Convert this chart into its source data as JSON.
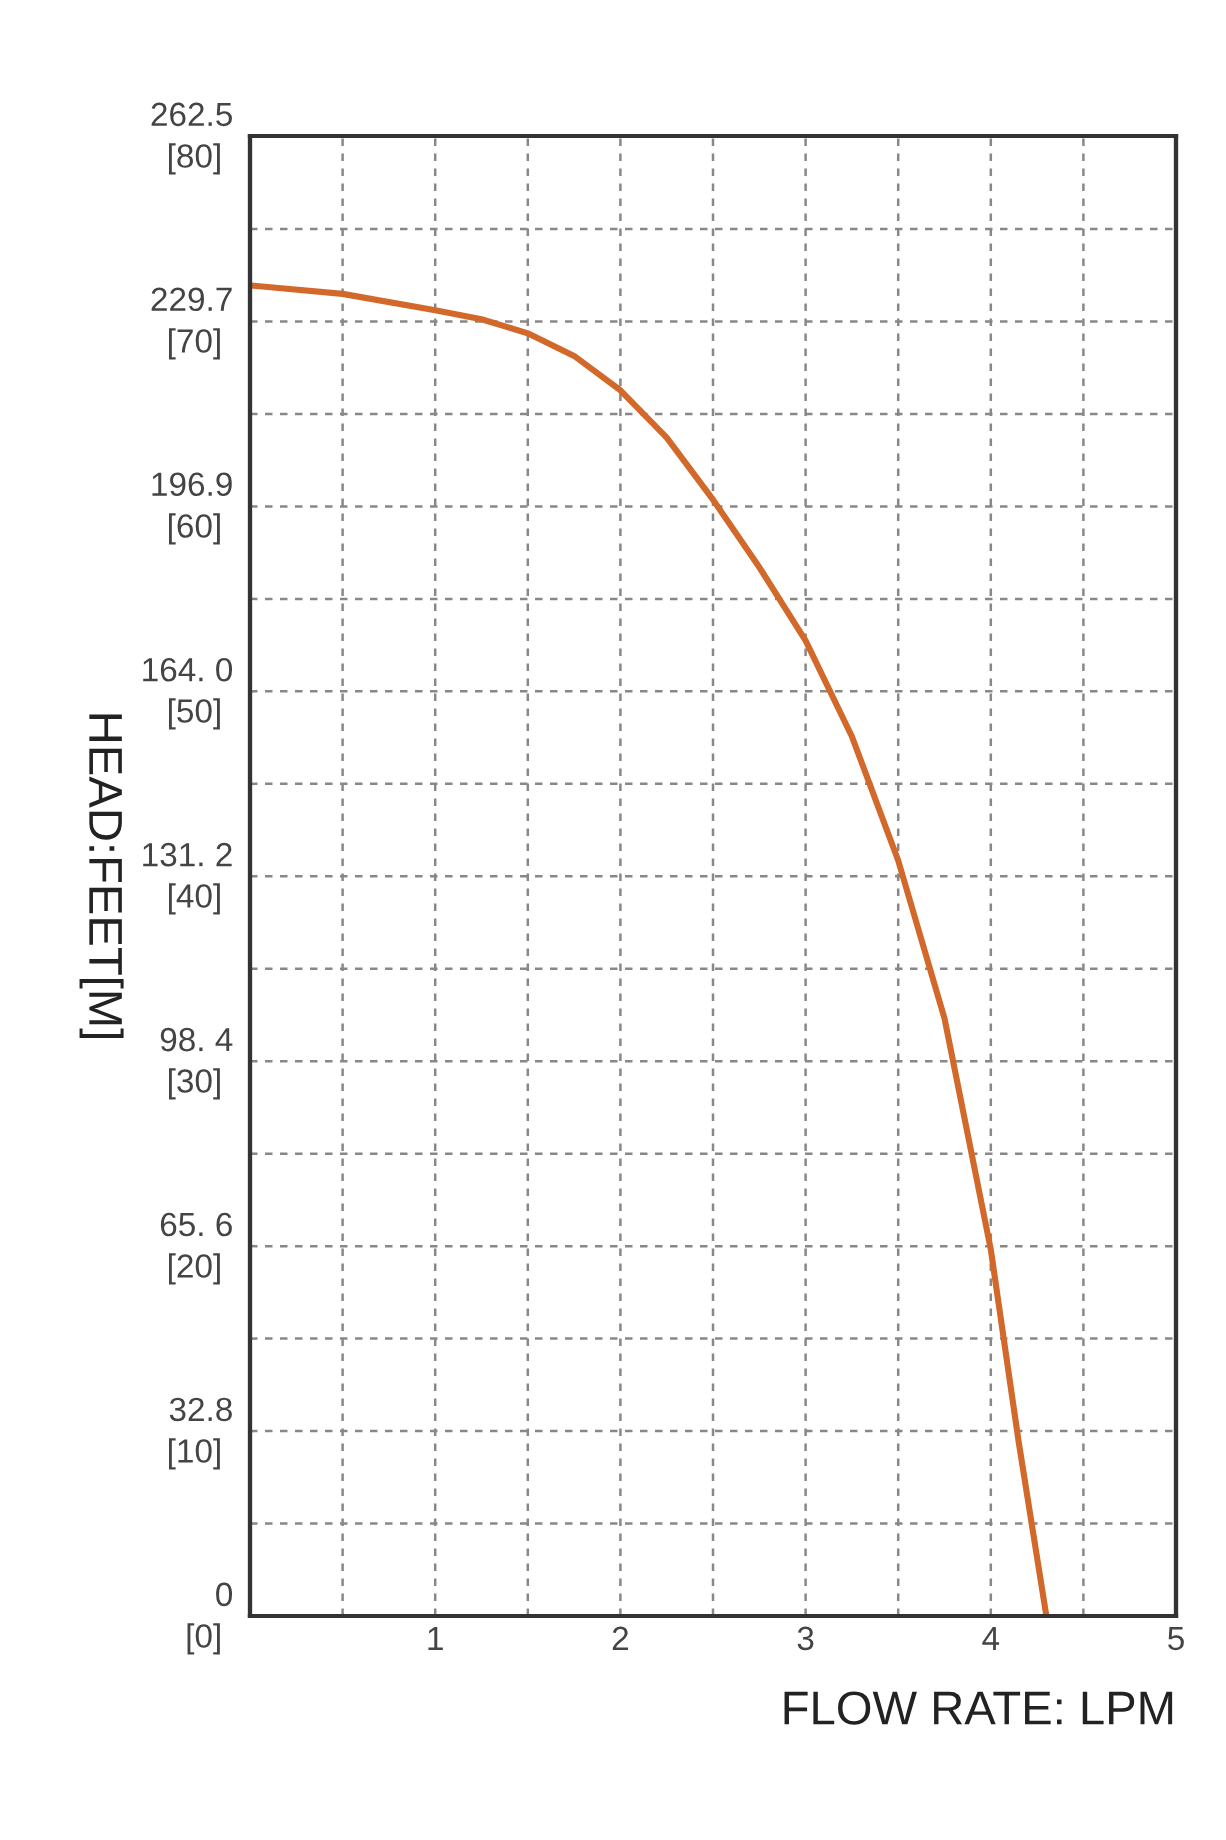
{
  "chart_data": {
    "type": "line",
    "xlabel": "FLOW RATE: LPM",
    "ylabel": "HEAD:FEET[M]",
    "x": [
      0,
      0.5,
      1,
      1.25,
      1.5,
      1.75,
      2,
      2.25,
      2.5,
      2.75,
      3,
      3.25,
      3.5,
      3.75,
      4,
      4.15,
      4.3
    ],
    "series": [
      {
        "color": "#d2692a",
        "values": [
          236,
          234.5,
          231.6,
          230,
          227.5,
          223.5,
          217.4,
          209,
          198,
          186,
          173,
          156,
          134,
          106,
          65,
          31,
          0
        ]
      }
    ],
    "xlim": [
      0,
      5
    ],
    "xticks": [
      {
        "value": 0,
        "label": null
      },
      1,
      2,
      3,
      4,
      5
    ],
    "ylim": [
      0,
      262.5
    ],
    "yticks": [
      0,
      32.8,
      {
        "value": 65.6,
        "label": "65. 6"
      },
      {
        "value": 98.4,
        "label": "98. 4"
      },
      {
        "value": 131.2,
        "label": "131. 2"
      },
      {
        "value": 164.0,
        "label": "164. 0"
      },
      196.9,
      229.7,
      262.5
    ],
    "y2lim": [
      0,
      80
    ],
    "y2ticks": [
      {
        "value": 0,
        "label": "[0]"
      },
      {
        "value": 10,
        "label": "[10]"
      },
      {
        "value": 20,
        "label": "[20]"
      },
      {
        "value": 30,
        "label": "[30]"
      },
      {
        "value": 40,
        "label": "[40]"
      },
      {
        "value": 50,
        "label": "[50]"
      },
      {
        "value": 60,
        "label": "[60]"
      },
      {
        "value": 70,
        "label": "[70]"
      },
      {
        "value": 80,
        "label": "[80]"
      }
    ],
    "grid": true,
    "line_style": "solid",
    "marker": "none"
  }
}
